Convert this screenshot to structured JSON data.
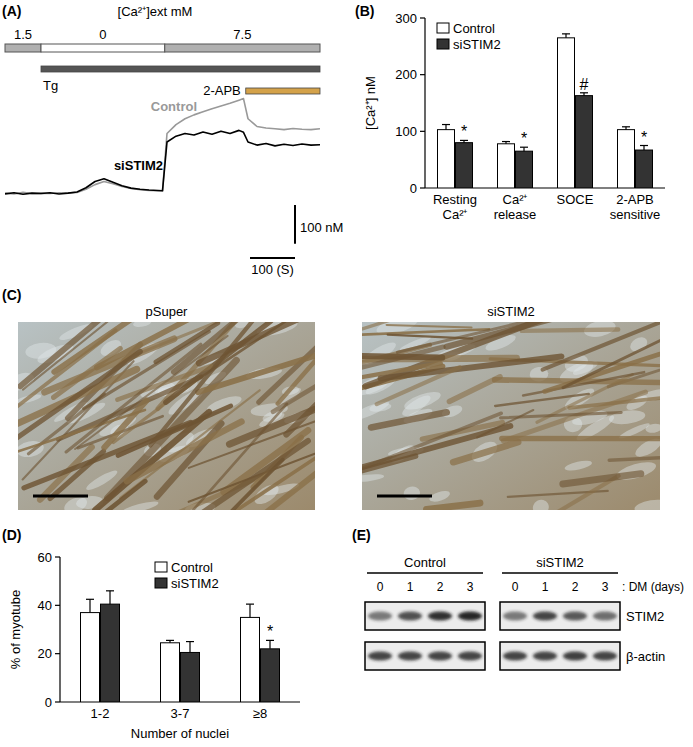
{
  "chart_data": [
    {
      "panel_label": "(A)",
      "type": "line",
      "title": "[Ca²⁺]ext mM",
      "tick_labels": false,
      "x": [
        0,
        20,
        40,
        60,
        80,
        100,
        120,
        140,
        160,
        180,
        200,
        220,
        240,
        260,
        280,
        300,
        320,
        340,
        350,
        360,
        380,
        400,
        420,
        440,
        460,
        480,
        500,
        520,
        530,
        540,
        560,
        580,
        600,
        620,
        640,
        660,
        680,
        700
      ],
      "xlim": [
        0,
        700
      ],
      "ylim": [
        0,
        400
      ],
      "series": [
        {
          "name": "Control",
          "color": "#999999",
          "values": [
            108,
            106,
            110,
            107,
            108,
            107,
            109,
            108,
            110,
            118,
            130,
            138,
            132,
            125,
            120,
            117,
            115,
            114,
            114,
            262,
            285,
            300,
            310,
            318,
            326,
            333,
            340,
            348,
            352,
            300,
            280,
            276,
            274,
            272,
            275,
            273,
            272,
            274
          ]
        },
        {
          "name": "siSTIM2",
          "color": "#000000",
          "values": [
            106,
            109,
            105,
            108,
            107,
            109,
            106,
            108,
            111,
            122,
            138,
            145,
            136,
            127,
            121,
            118,
            116,
            115,
            114,
            240,
            255,
            262,
            258,
            266,
            260,
            268,
            262,
            270,
            265,
            240,
            232,
            236,
            230,
            234,
            231,
            235,
            232,
            233
          ]
        }
      ],
      "protocol": {
        "ca_ext": [
          {
            "value": 1.5,
            "start": 0,
            "end": 80
          },
          {
            "value": 0,
            "start": 80,
            "end": 355
          },
          {
            "value": 7.5,
            "start": 355,
            "end": 700
          }
        ],
        "drugs": [
          {
            "label": "Tg",
            "start": 80,
            "end": 700
          },
          {
            "label": "2-APB",
            "start": 535,
            "end": 700,
            "color": "#d4a24a"
          }
        ]
      },
      "scale_bar": {
        "x": {
          "value": 100,
          "label": "100 (S)"
        },
        "y": {
          "value": 100,
          "label": "100 nM"
        }
      }
    },
    {
      "panel_label": "(B)",
      "type": "bar",
      "y_label": "[Ca²⁺] nM",
      "categories": [
        "Resting Ca²⁺",
        "Ca²⁺ release",
        "SOCE",
        "2-APB sensitive"
      ],
      "ylim": [
        0,
        300
      ],
      "yticks": [
        0,
        100,
        200,
        300
      ],
      "legend": "top-left",
      "series": [
        {
          "name": "Control",
          "color": "#ffffff",
          "values": [
            103,
            78,
            265,
            103
          ],
          "errors": [
            9,
            4,
            7,
            5
          ]
        },
        {
          "name": "siSTIM2",
          "color": "#333333",
          "values": [
            80,
            65,
            163,
            67
          ],
          "errors": [
            4,
            7,
            5,
            8
          ],
          "significance": [
            "*",
            "*",
            "#",
            "*"
          ]
        }
      ]
    },
    {
      "panel_label": "(D)",
      "type": "bar",
      "y_label": "% of myotube",
      "x_label": "Number of nuclei",
      "categories": [
        "1-2",
        "3-7",
        "≥8"
      ],
      "ylim": [
        0,
        60
      ],
      "yticks": [
        0,
        20,
        40,
        60
      ],
      "legend": "top",
      "series": [
        {
          "name": "Control",
          "color": "#ffffff",
          "values": [
            37,
            24.5,
            35
          ],
          "errors": [
            5.5,
            1,
            5.5
          ]
        },
        {
          "name": "siSTIM2",
          "color": "#333333",
          "values": [
            40.5,
            20.5,
            22
          ],
          "errors": [
            5.5,
            4.5,
            3.5
          ],
          "significance": [
            null,
            null,
            "*"
          ]
        }
      ]
    }
  ],
  "micrographs": {
    "panel_label": "(C)",
    "images": [
      {
        "title": "pSuper"
      },
      {
        "title": "siSTIM2"
      }
    ]
  },
  "western_blot": {
    "panel_label": "(E)",
    "groups": [
      "Control",
      "siSTIM2"
    ],
    "lanes": [
      0,
      1,
      2,
      3
    ],
    "lane_axis_label": ": DM (days)",
    "rows": [
      "STIM2",
      "β-actin"
    ]
  }
}
